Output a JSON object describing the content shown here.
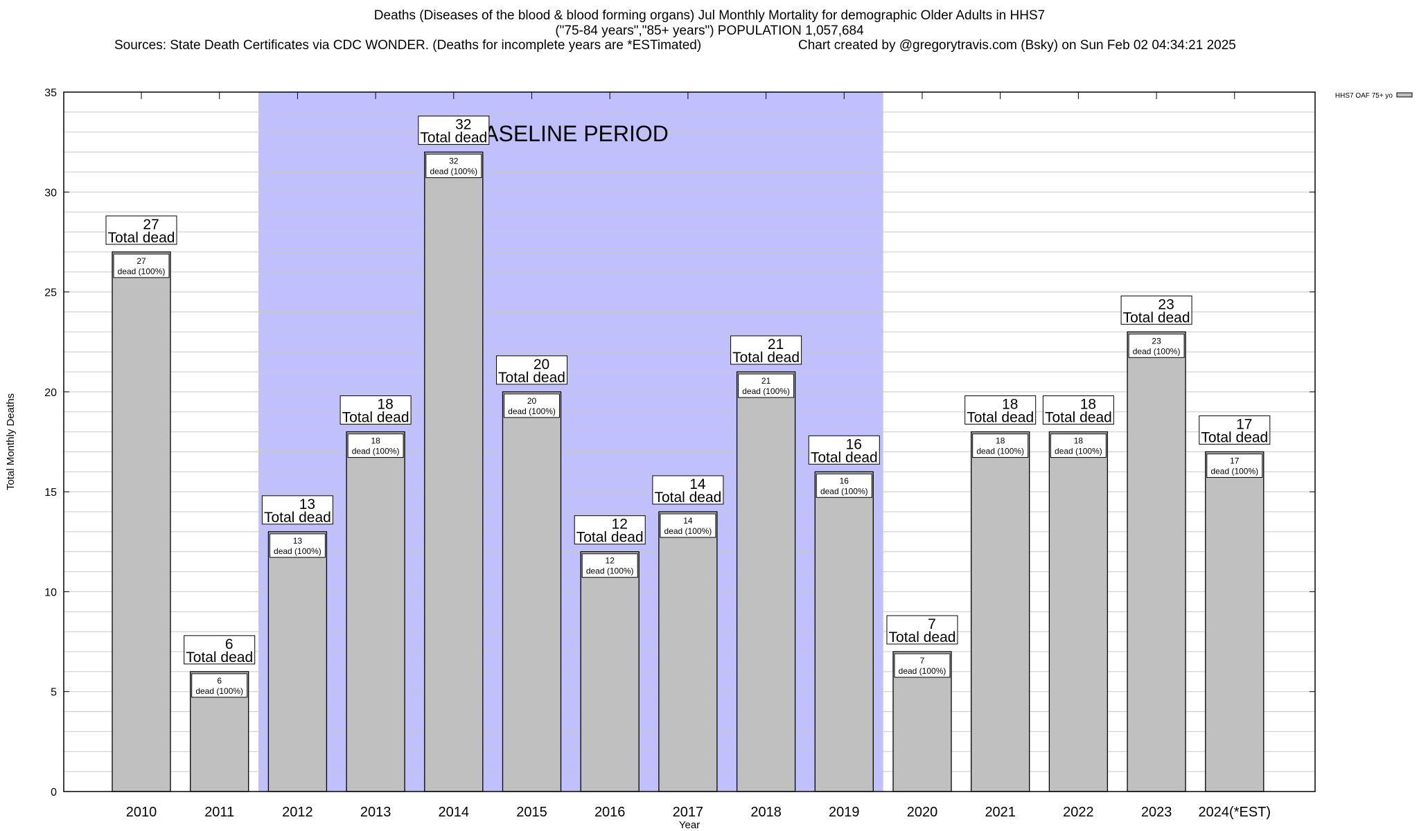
{
  "title": {
    "line1": "Deaths (Diseases of the blood & blood forming organs) Jul Monthly Mortality for demographic Older Adults in HHS7",
    "line2": "(\"75-84 years\",\"85+ years\") POPULATION 1,057,684",
    "line3_left": "Sources: State Death Certificates via CDC WONDER. (Deaths for incomplete years are *ESTimated)",
    "line3_right": "Chart created by @gregorytravis.com (Bsky) on Sun Feb 02 04:34:21 2025"
  },
  "chart_data": {
    "type": "bar",
    "xlabel": "Year",
    "ylabel": "Total Monthly Deaths",
    "ylim": [
      0,
      35
    ],
    "yticks": [
      0,
      5,
      10,
      15,
      20,
      25,
      30,
      35
    ],
    "grid": true,
    "legend": {
      "position": "top-right",
      "entries": [
        "HHS7 OAF 75+ yo"
      ]
    },
    "categories": [
      "2010",
      "2011",
      "2012",
      "2013",
      "2014",
      "2015",
      "2016",
      "2017",
      "2018",
      "2019",
      "2020",
      "2021",
      "2022",
      "2023",
      "2024(*EST)"
    ],
    "series": [
      {
        "name": "HHS7 OAF 75+ yo",
        "values": [
          27,
          6,
          13,
          18,
          32,
          20,
          12,
          14,
          21,
          16,
          7,
          18,
          18,
          23,
          17
        ],
        "color": "#c0c0c0"
      }
    ],
    "label_total_suffix": "Total dead",
    "label_inner_suffix": "dead (100%)",
    "annotation": {
      "text": "BASELINE PERIOD",
      "range": [
        "2012",
        "2019"
      ],
      "color": "#c0c0ff"
    }
  }
}
